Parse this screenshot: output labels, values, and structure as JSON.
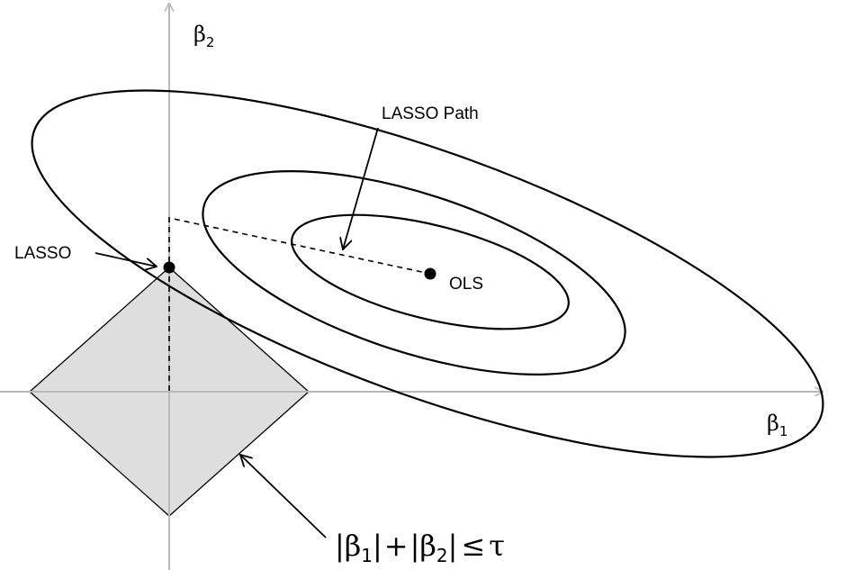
{
  "axes": {
    "x_label": "β",
    "x_label_sub": "1",
    "y_label": "β",
    "y_label_sub": "2"
  },
  "annotations": {
    "lasso_path": "LASSO Path",
    "lasso": "LASSO",
    "ols": "OLS"
  },
  "constraint": {
    "bar1": "|",
    "beta1": "β",
    "beta1_sub": "1",
    "bar2": "|",
    "plus": "+",
    "bar3": "|",
    "beta2": "β",
    "beta2_sub": "2",
    "bar4": "|",
    "leq": "≤",
    "tau": "τ"
  },
  "colors": {
    "axis": "#b8b8b8",
    "diamond_fill": "#dedede",
    "ink": "#000000"
  }
}
